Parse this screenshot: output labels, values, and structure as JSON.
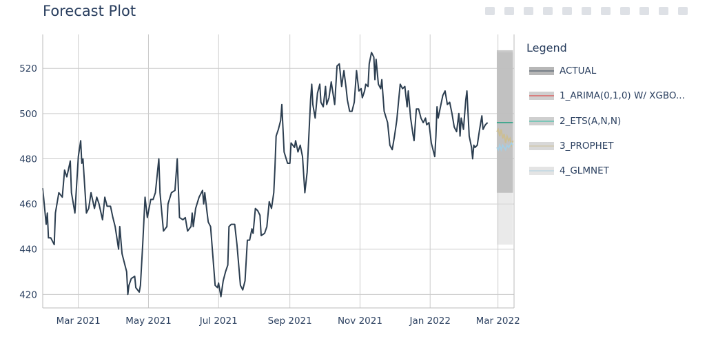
{
  "title": "Forecast Plot",
  "legend": {
    "title": "Legend",
    "items": [
      {
        "label": "ACTUAL",
        "line": "#2c3e50",
        "band": "#999999"
      },
      {
        "label": "1_ARIMA(0,1,0) W/ XGBO...",
        "line": "#e31a1c",
        "band": "#bbbbbb"
      },
      {
        "label": "2_ETS(A,N,N)",
        "line": "#18bc9c",
        "band": "#bbbbbb"
      },
      {
        "label": "3_PROPHET",
        "line": "#ccbe93",
        "band": "#c8c8c8"
      },
      {
        "label": "4_GLMNET",
        "line": "#a6cee3",
        "band": "#d8d8d8"
      }
    ]
  },
  "chart_data": {
    "type": "line",
    "x_tick_labels": [
      "Mar 2021",
      "May 2021",
      "Jul 2021",
      "Sep 2021",
      "Nov 2021",
      "Jan 2022",
      "Mar 2022"
    ],
    "x_ticks": [
      "2021-03-01",
      "2021-05-01",
      "2021-07-01",
      "2021-09-01",
      "2021-11-01",
      "2022-01-01",
      "2022-03-01"
    ],
    "xlim": [
      "2021-01-29",
      "2022-03-15"
    ],
    "y_tick_labels": [
      "420",
      "440",
      "460",
      "480",
      "500",
      "520"
    ],
    "ylim": [
      414,
      535
    ],
    "grid": true,
    "legend_position": "right",
    "series": [
      {
        "name": "ACTUAL",
        "color": "#2c3e50",
        "points": [
          [
            "2021-01-29",
            467
          ],
          [
            "2021-02-01",
            451
          ],
          [
            "2021-02-02",
            456
          ],
          [
            "2021-02-03",
            445
          ],
          [
            "2021-02-05",
            445
          ],
          [
            "2021-02-08",
            442
          ],
          [
            "2021-02-09",
            456
          ],
          [
            "2021-02-12",
            465
          ],
          [
            "2021-02-15",
            463
          ],
          [
            "2021-02-17",
            475
          ],
          [
            "2021-02-19",
            472
          ],
          [
            "2021-02-22",
            479
          ],
          [
            "2021-02-23",
            465
          ],
          [
            "2021-02-26",
            456
          ],
          [
            "2021-03-01",
            481
          ],
          [
            "2021-03-03",
            488
          ],
          [
            "2021-03-04",
            478
          ],
          [
            "2021-03-05",
            480
          ],
          [
            "2021-03-08",
            456
          ],
          [
            "2021-03-10",
            458
          ],
          [
            "2021-03-12",
            465
          ],
          [
            "2021-03-15",
            458
          ],
          [
            "2021-03-17",
            463
          ],
          [
            "2021-03-19",
            460
          ],
          [
            "2021-03-22",
            453
          ],
          [
            "2021-03-24",
            463
          ],
          [
            "2021-03-26",
            459
          ],
          [
            "2021-03-29",
            459
          ],
          [
            "2021-03-31",
            454
          ],
          [
            "2021-04-02",
            450
          ],
          [
            "2021-04-05",
            440
          ],
          [
            "2021-04-06",
            450
          ],
          [
            "2021-04-08",
            438
          ],
          [
            "2021-04-12",
            430
          ],
          [
            "2021-04-13",
            420
          ],
          [
            "2021-04-14",
            424
          ],
          [
            "2021-04-16",
            427
          ],
          [
            "2021-04-19",
            428
          ],
          [
            "2021-04-20",
            423
          ],
          [
            "2021-04-23",
            421
          ],
          [
            "2021-04-24",
            424
          ],
          [
            "2021-04-26",
            442
          ],
          [
            "2021-04-28",
            463
          ],
          [
            "2021-04-30",
            454
          ],
          [
            "2021-05-03",
            462
          ],
          [
            "2021-05-05",
            462
          ],
          [
            "2021-05-07",
            465
          ],
          [
            "2021-05-10",
            480
          ],
          [
            "2021-05-11",
            465
          ],
          [
            "2021-05-14",
            448
          ],
          [
            "2021-05-17",
            450
          ],
          [
            "2021-05-18",
            460
          ],
          [
            "2021-05-21",
            465
          ],
          [
            "2021-05-24",
            466
          ],
          [
            "2021-05-26",
            480
          ],
          [
            "2021-05-28",
            454
          ],
          [
            "2021-05-31",
            453
          ],
          [
            "2021-06-02",
            454
          ],
          [
            "2021-06-04",
            448
          ],
          [
            "2021-06-07",
            450
          ],
          [
            "2021-06-08",
            456
          ],
          [
            "2021-06-09",
            450
          ],
          [
            "2021-06-11",
            458
          ],
          [
            "2021-06-14",
            463
          ],
          [
            "2021-06-17",
            466
          ],
          [
            "2021-06-18",
            460
          ],
          [
            "2021-06-19",
            465
          ],
          [
            "2021-06-21",
            456
          ],
          [
            "2021-06-22",
            452
          ],
          [
            "2021-06-24",
            450
          ],
          [
            "2021-06-26",
            437
          ],
          [
            "2021-06-28",
            424
          ],
          [
            "2021-06-30",
            423
          ],
          [
            "2021-07-01",
            425
          ],
          [
            "2021-07-03",
            419
          ],
          [
            "2021-07-05",
            426
          ],
          [
            "2021-07-07",
            430
          ],
          [
            "2021-07-09",
            433
          ],
          [
            "2021-07-10",
            450
          ],
          [
            "2021-07-12",
            451
          ],
          [
            "2021-07-15",
            451
          ],
          [
            "2021-07-17",
            442
          ],
          [
            "2021-07-20",
            424
          ],
          [
            "2021-07-22",
            422
          ],
          [
            "2021-07-24",
            426
          ],
          [
            "2021-07-26",
            444
          ],
          [
            "2021-07-28",
            444
          ],
          [
            "2021-07-30",
            449
          ],
          [
            "2021-07-31",
            447
          ],
          [
            "2021-08-02",
            458
          ],
          [
            "2021-08-04",
            457
          ],
          [
            "2021-08-06",
            455
          ],
          [
            "2021-08-07",
            446
          ],
          [
            "2021-08-10",
            447
          ],
          [
            "2021-08-12",
            450
          ],
          [
            "2021-08-14",
            461
          ],
          [
            "2021-08-16",
            458
          ],
          [
            "2021-08-18",
            465
          ],
          [
            "2021-08-19",
            476
          ],
          [
            "2021-08-20",
            490
          ],
          [
            "2021-08-22",
            493
          ],
          [
            "2021-08-24",
            497
          ],
          [
            "2021-08-25",
            504
          ],
          [
            "2021-08-27",
            483
          ],
          [
            "2021-08-30",
            478
          ],
          [
            "2021-09-01",
            478
          ],
          [
            "2021-09-02",
            487
          ],
          [
            "2021-09-05",
            485
          ],
          [
            "2021-09-06",
            488
          ],
          [
            "2021-09-08",
            483
          ],
          [
            "2021-09-10",
            486
          ],
          [
            "2021-09-12",
            481
          ],
          [
            "2021-09-14",
            465
          ],
          [
            "2021-09-16",
            474
          ],
          [
            "2021-09-19",
            506
          ],
          [
            "2021-09-20",
            513
          ],
          [
            "2021-09-21",
            504
          ],
          [
            "2021-09-23",
            498
          ],
          [
            "2021-09-25",
            509
          ],
          [
            "2021-09-27",
            513
          ],
          [
            "2021-09-28",
            505
          ],
          [
            "2021-09-30",
            503
          ],
          [
            "2021-10-02",
            512
          ],
          [
            "2021-10-03",
            504
          ],
          [
            "2021-10-05",
            507
          ],
          [
            "2021-10-07",
            514
          ],
          [
            "2021-10-10",
            504
          ],
          [
            "2021-10-12",
            521
          ],
          [
            "2021-10-14",
            522
          ],
          [
            "2021-10-16",
            512
          ],
          [
            "2021-10-18",
            519
          ],
          [
            "2021-10-20",
            511
          ],
          [
            "2021-10-21",
            506
          ],
          [
            "2021-10-23",
            501
          ],
          [
            "2021-10-25",
            501
          ],
          [
            "2021-10-27",
            505
          ],
          [
            "2021-10-29",
            519
          ],
          [
            "2021-10-31",
            510
          ],
          [
            "2021-11-02",
            511
          ],
          [
            "2021-11-03",
            507
          ],
          [
            "2021-11-05",
            510
          ],
          [
            "2021-11-06",
            513
          ],
          [
            "2021-11-08",
            512
          ],
          [
            "2021-11-09",
            522
          ],
          [
            "2021-11-11",
            527
          ],
          [
            "2021-11-13",
            525
          ],
          [
            "2021-11-14",
            515
          ],
          [
            "2021-11-15",
            524
          ],
          [
            "2021-11-17",
            513
          ],
          [
            "2021-11-19",
            511
          ],
          [
            "2021-11-20",
            515
          ],
          [
            "2021-11-22",
            501
          ],
          [
            "2021-11-25",
            496
          ],
          [
            "2021-11-27",
            486
          ],
          [
            "2021-11-29",
            484
          ],
          [
            "2021-12-01",
            490
          ],
          [
            "2021-12-03",
            497
          ],
          [
            "2021-12-05",
            508
          ],
          [
            "2021-12-06",
            513
          ],
          [
            "2021-12-08",
            511
          ],
          [
            "2021-12-10",
            512
          ],
          [
            "2021-12-12",
            503
          ],
          [
            "2021-12-13",
            510
          ],
          [
            "2021-12-15",
            498
          ],
          [
            "2021-12-17",
            491
          ],
          [
            "2021-12-18",
            488
          ],
          [
            "2021-12-20",
            502
          ],
          [
            "2021-12-22",
            502
          ],
          [
            "2021-12-24",
            498
          ],
          [
            "2021-12-26",
            496
          ],
          [
            "2021-12-28",
            498
          ],
          [
            "2021-12-29",
            495
          ],
          [
            "2021-12-31",
            496
          ],
          [
            "2022-01-02",
            487
          ],
          [
            "2022-01-05",
            481
          ],
          [
            "2022-01-06",
            490
          ],
          [
            "2022-01-07",
            503
          ],
          [
            "2022-01-08",
            498
          ],
          [
            "2022-01-10",
            503
          ],
          [
            "2022-01-12",
            508
          ],
          [
            "2022-01-14",
            510
          ],
          [
            "2022-01-16",
            504
          ],
          [
            "2022-01-18",
            505
          ],
          [
            "2022-01-20",
            500
          ],
          [
            "2022-01-22",
            494
          ],
          [
            "2022-01-24",
            492
          ],
          [
            "2022-01-26",
            500
          ],
          [
            "2022-01-27",
            490
          ],
          [
            "2022-01-28",
            498
          ],
          [
            "2022-01-30",
            493
          ],
          [
            "2022-02-01",
            506
          ],
          [
            "2022-02-02",
            510
          ],
          [
            "2022-02-04",
            490
          ],
          [
            "2022-02-06",
            485
          ],
          [
            "2022-02-07",
            480
          ],
          [
            "2022-02-08",
            486
          ],
          [
            "2022-02-09",
            485
          ],
          [
            "2022-02-11",
            486
          ],
          [
            "2022-02-13",
            493
          ],
          [
            "2022-02-15",
            499
          ],
          [
            "2022-02-16",
            493
          ],
          [
            "2022-02-18",
            495
          ],
          [
            "2022-02-20",
            496
          ]
        ]
      }
    ],
    "forecast": {
      "x_start": "2022-02-28",
      "x_end": "2022-03-14",
      "prediction_bands": [
        {
          "model": "4_GLMNET",
          "color": "#d8d8d8",
          "lower": 442,
          "upper": 527
        },
        {
          "model": "3_PROPHET",
          "color": "#c8c8c8",
          "lower": 465,
          "upper": 527
        },
        {
          "model": "2_ETS(A,N,N)",
          "color": "#bbbbbb",
          "lower": 465,
          "upper": 528
        },
        {
          "model": "1_ARIMA(0,1,0) W/ XGBO...",
          "color": "#bbbbbb",
          "lower": 465,
          "upper": 528
        }
      ],
      "lines": [
        {
          "model": "1_ARIMA(0,1,0) W/ XGBO...",
          "color": "#e31a1c",
          "value": 496
        },
        {
          "model": "2_ETS(A,N,N)",
          "color": "#18bc9c",
          "value": 496
        },
        {
          "model": "3_PROPHET",
          "color": "#ccbe93",
          "values": [
            492,
            493,
            490,
            493,
            489,
            491,
            487,
            490,
            488,
            489,
            486,
            488
          ]
        },
        {
          "model": "4_GLMNET",
          "color": "#a6cee3",
          "values": [
            485,
            484,
            486,
            484,
            486,
            485,
            484,
            486,
            485,
            486,
            487,
            486
          ]
        }
      ]
    }
  }
}
